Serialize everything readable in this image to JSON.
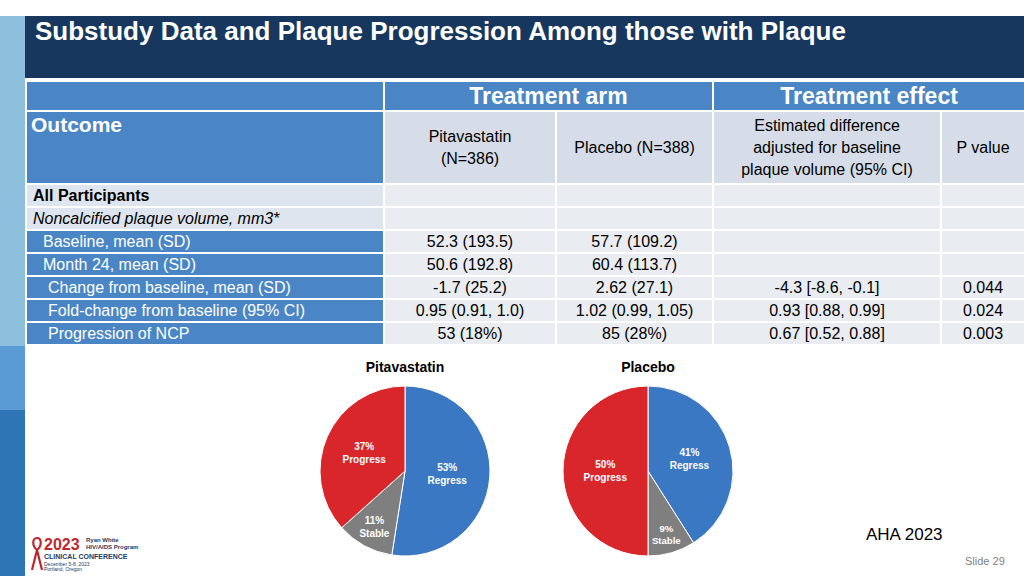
{
  "header": {
    "title": "Substudy Data and Plaque Progression Among those with Plaque"
  },
  "table": {
    "group_headers": [
      "Treatment arm",
      "Treatment effect"
    ],
    "columns": [
      "Outcome",
      "Pitavastatin\n(N=386)",
      "Placebo (N=388)",
      "Estimated difference\nadjusted for baseline\nplaque volume (95% CI)",
      "P value"
    ],
    "rows": [
      {
        "style": "section",
        "cells": [
          "All Participants",
          null,
          null,
          null,
          null
        ]
      },
      {
        "style": "italic",
        "cells": [
          "Noncalcified plaque volume, mm3*",
          null,
          null,
          null,
          null
        ]
      },
      {
        "style": "indent",
        "cells": [
          "Baseline, mean (SD)",
          "52.3 (193.5)",
          "57.7 (109.2)",
          null,
          null
        ]
      },
      {
        "style": "indent",
        "cells": [
          "Month 24, mean (SD)",
          "50.6 (192.8)",
          "60.4 (113.7)",
          null,
          null
        ]
      },
      {
        "style": "indent2",
        "cells": [
          "Change from baseline, mean (SD)",
          "-1.7 (25.2)",
          "2.62 (27.1)",
          "-4.3 [-8.6, -0.1]",
          "0.044"
        ]
      },
      {
        "style": "indent2",
        "cells": [
          "Fold-change from baseline (95% CI)",
          "0.95 (0.91, 1.0)",
          "1.02 (0.99, 1.05)",
          "0.93 [0.88, 0.99]",
          "0.024"
        ]
      },
      {
        "style": "indent2",
        "cells": [
          "Progression of NCP",
          "53 (18%)",
          "85 (28%)",
          "0.67 [0.52, 0.88]",
          "0.003"
        ]
      }
    ]
  },
  "chart_data": [
    {
      "type": "pie",
      "title": "Pitavastatin",
      "categories": [
        "Regress",
        "Stable",
        "Progress"
      ],
      "values": [
        53,
        11,
        37
      ],
      "value_labels": [
        "53%",
        "11%",
        "37%"
      ],
      "colors": [
        "#3a78c3",
        "#7f7f7f",
        "#d9262b"
      ],
      "data_labels": true
    },
    {
      "type": "pie",
      "title": "Placebo",
      "categories": [
        "Regress",
        "Stable",
        "Progress"
      ],
      "values": [
        41,
        9,
        50
      ],
      "value_labels": [
        "41%",
        "9%",
        "50%"
      ],
      "colors": [
        "#3a78c3",
        "#7f7f7f",
        "#d9262b"
      ],
      "data_labels": true
    }
  ],
  "source": "AHA 2023",
  "slide_number": "Slide 29",
  "logo": {
    "year": "2023",
    "program": "Ryan White\nHIV/AIDS Program",
    "name": "CLINICAL CONFERENCE",
    "date": "December 5-8, 2023\nPortland, Oregon"
  }
}
